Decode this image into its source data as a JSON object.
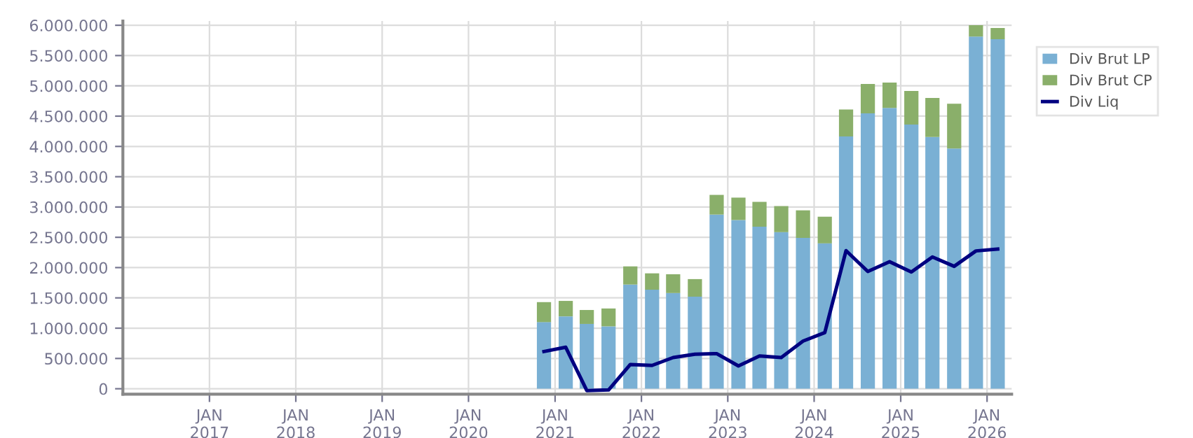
{
  "chart_data": {
    "type": "bar",
    "stacked": true,
    "x": [
      "2020-11-15",
      "2021-02-15",
      "2021-05-15",
      "2021-08-15",
      "2021-11-15",
      "2022-02-15",
      "2022-05-15",
      "2022-08-15",
      "2022-11-15",
      "2023-02-15",
      "2023-05-15",
      "2023-08-15",
      "2023-11-15",
      "2024-02-15",
      "2024-05-15",
      "2024-08-15",
      "2024-11-15",
      "2025-02-15",
      "2025-05-15",
      "2025-08-15",
      "2025-11-15",
      "2026-02-15"
    ],
    "series": [
      {
        "name": "Div Brut LP",
        "color": "#7ab0d4",
        "values": [
          1100000,
          1195000,
          1070000,
          1030000,
          1720000,
          1635000,
          1580000,
          1520000,
          2875000,
          2785000,
          2675000,
          2585000,
          2490000,
          2400000,
          4165000,
          4545000,
          4635000,
          4360000,
          4155000,
          3965000,
          5815000,
          5770000
        ]
      },
      {
        "name": "Div Brut CP",
        "color": "#8aaf6a",
        "values": [
          330000,
          255000,
          230000,
          295000,
          300000,
          270000,
          310000,
          290000,
          325000,
          370000,
          410000,
          430000,
          455000,
          440000,
          445000,
          485000,
          420000,
          555000,
          645000,
          740000,
          185000,
          185000
        ]
      },
      {
        "name": "Div Liq",
        "type": "line",
        "color": "#000080",
        "values": [
          615000,
          685000,
          -30000,
          -20000,
          400000,
          385000,
          515000,
          570000,
          580000,
          377000,
          540000,
          516000,
          787000,
          926000,
          2280000,
          1935000,
          2097000,
          1928000,
          2176000,
          2021000,
          2275000,
          2306000
        ]
      }
    ],
    "xlim": [
      "2016-01-01",
      "2026-04-15"
    ],
    "xticks": [
      {
        "value": "2017-01-01",
        "label": "JAN\n2017"
      },
      {
        "value": "2018-01-01",
        "label": "JAN\n2018"
      },
      {
        "value": "2019-01-01",
        "label": "JAN\n2019"
      },
      {
        "value": "2020-01-01",
        "label": "JAN\n2020"
      },
      {
        "value": "2021-01-01",
        "label": "JAN\n2021"
      },
      {
        "value": "2022-01-01",
        "label": "JAN\n2022"
      },
      {
        "value": "2023-01-01",
        "label": "JAN\n2023"
      },
      {
        "value": "2024-01-01",
        "label": "JAN\n2024"
      },
      {
        "value": "2025-01-01",
        "label": "JAN\n2025"
      },
      {
        "value": "2026-01-01",
        "label": "JAN\n2026"
      }
    ],
    "ylim": [
      -90000,
      6070000
    ],
    "yticks": [
      0,
      {
        "value": 500000,
        "label": "500.000"
      },
      {
        "value": 1000000,
        "label": "1.000.000"
      },
      {
        "value": 1500000,
        "label": "1.500.000"
      },
      {
        "value": 2000000,
        "label": "2.000.000"
      },
      {
        "value": 2500000,
        "label": "2.500.000"
      },
      {
        "value": 3000000,
        "label": "3.000.000"
      },
      {
        "value": 3500000,
        "label": "3.500.000"
      },
      {
        "value": 4000000,
        "label": "4.000.000"
      },
      {
        "value": 4500000,
        "label": "4.500.000"
      },
      {
        "value": 5000000,
        "label": "5.000.000"
      },
      {
        "value": 5500000,
        "label": "5.500.000"
      },
      {
        "value": 6000000,
        "label": "6.000.000"
      }
    ],
    "grid": true,
    "legend": "top right",
    "marker": "none",
    "line_style": "solid"
  }
}
